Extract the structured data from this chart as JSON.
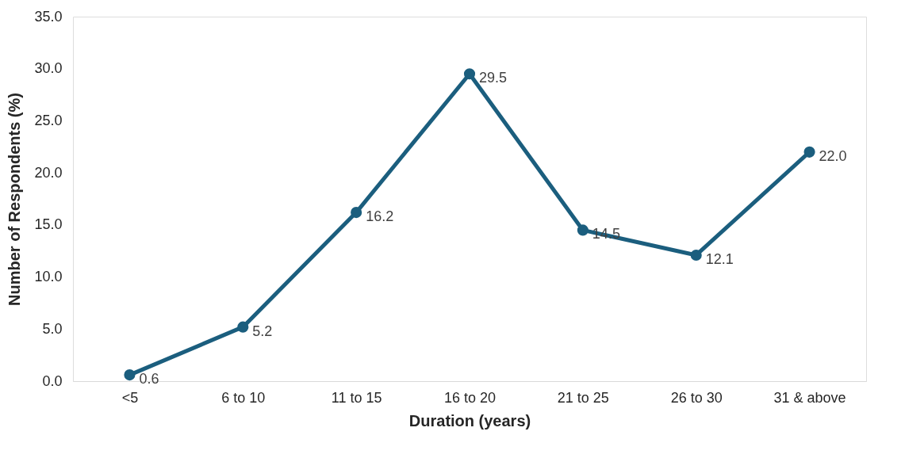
{
  "chart_data": {
    "type": "line",
    "xlabel": "Duration (years)",
    "ylabel": "Number of Respondents (%)",
    "categories": [
      "<5",
      "6 to 10",
      "11 to 15",
      "16 to 20",
      "21 to 25",
      "26 to 30",
      "31 & above"
    ],
    "series": [
      {
        "color": "#1b5e7e",
        "values": [
          0.6,
          5.2,
          16.2,
          29.5,
          14.5,
          12.1,
          22.0
        ],
        "value_labels": [
          "0.6",
          "5.2",
          "16.2",
          "29.5",
          "14.5",
          "12.1",
          "22.0"
        ]
      }
    ],
    "ylim": [
      0,
      35
    ],
    "yticks": [
      {
        "value": 0,
        "label": "0.0"
      },
      {
        "value": 5,
        "label": "5.0"
      },
      {
        "value": 10,
        "label": "10.0"
      },
      {
        "value": 15,
        "label": "15.0"
      },
      {
        "value": 20,
        "label": "20.0"
      },
      {
        "value": 25,
        "label": "25.0"
      },
      {
        "value": 30,
        "label": "30.0"
      },
      {
        "value": 35,
        "label": "35.0"
      }
    ],
    "grid": false,
    "marker": "circle",
    "line_style": "solid"
  }
}
